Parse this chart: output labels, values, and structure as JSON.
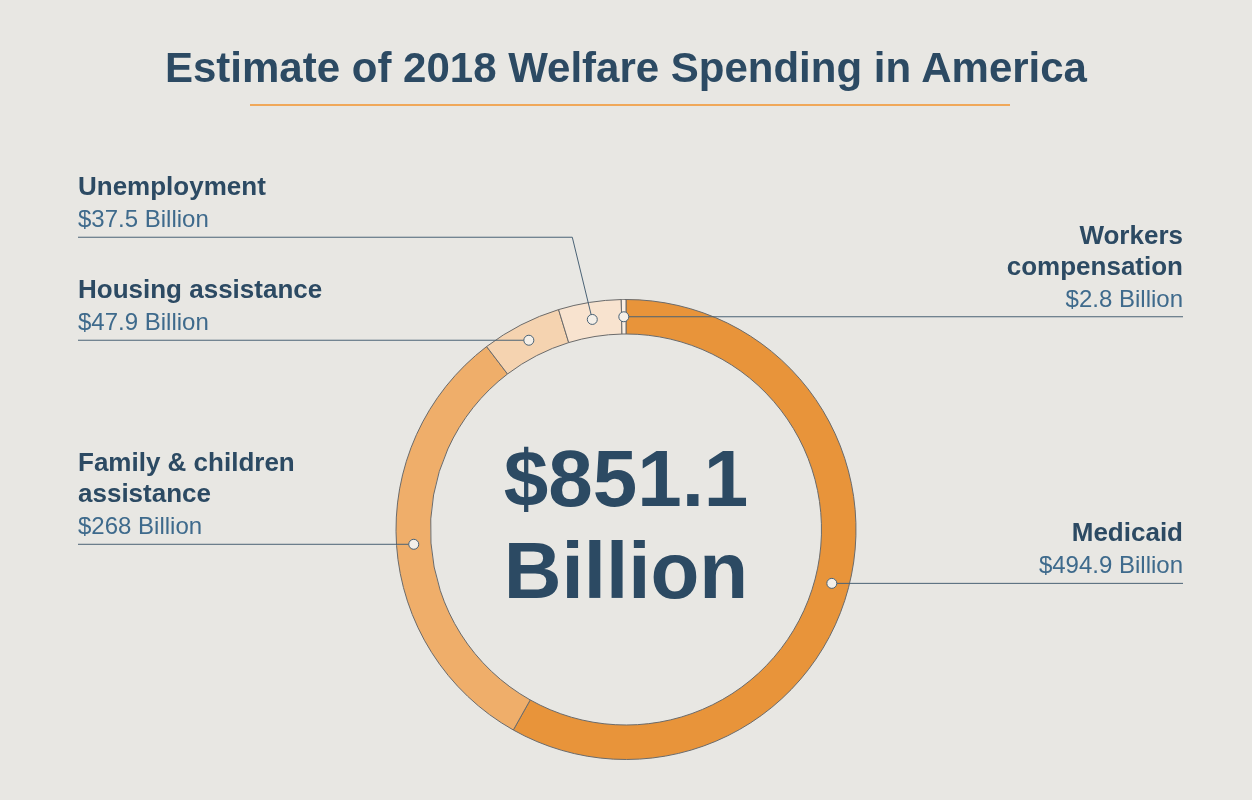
{
  "chart_data": {
    "type": "donut",
    "title": "Estimate of 2018 Welfare Spending in America",
    "categories": [
      "Medicaid",
      "Family & children assistance",
      "Housing assistance",
      "Unemployment",
      "Workers compensation"
    ],
    "values": [
      494.9,
      268,
      47.9,
      37.5,
      2.8
    ],
    "colors": [
      "#e8943a",
      "#efae6a",
      "#f5d3b0",
      "#f8e3cf",
      "#fcf0e4"
    ],
    "value_labels": [
      "$494.9 Billion",
      "$268 Billion",
      "$47.9 Billion",
      "$37.5 Billion",
      "$2.8 Billion"
    ],
    "annotations": [
      "$851.1 Billion"
    ]
  }
}
